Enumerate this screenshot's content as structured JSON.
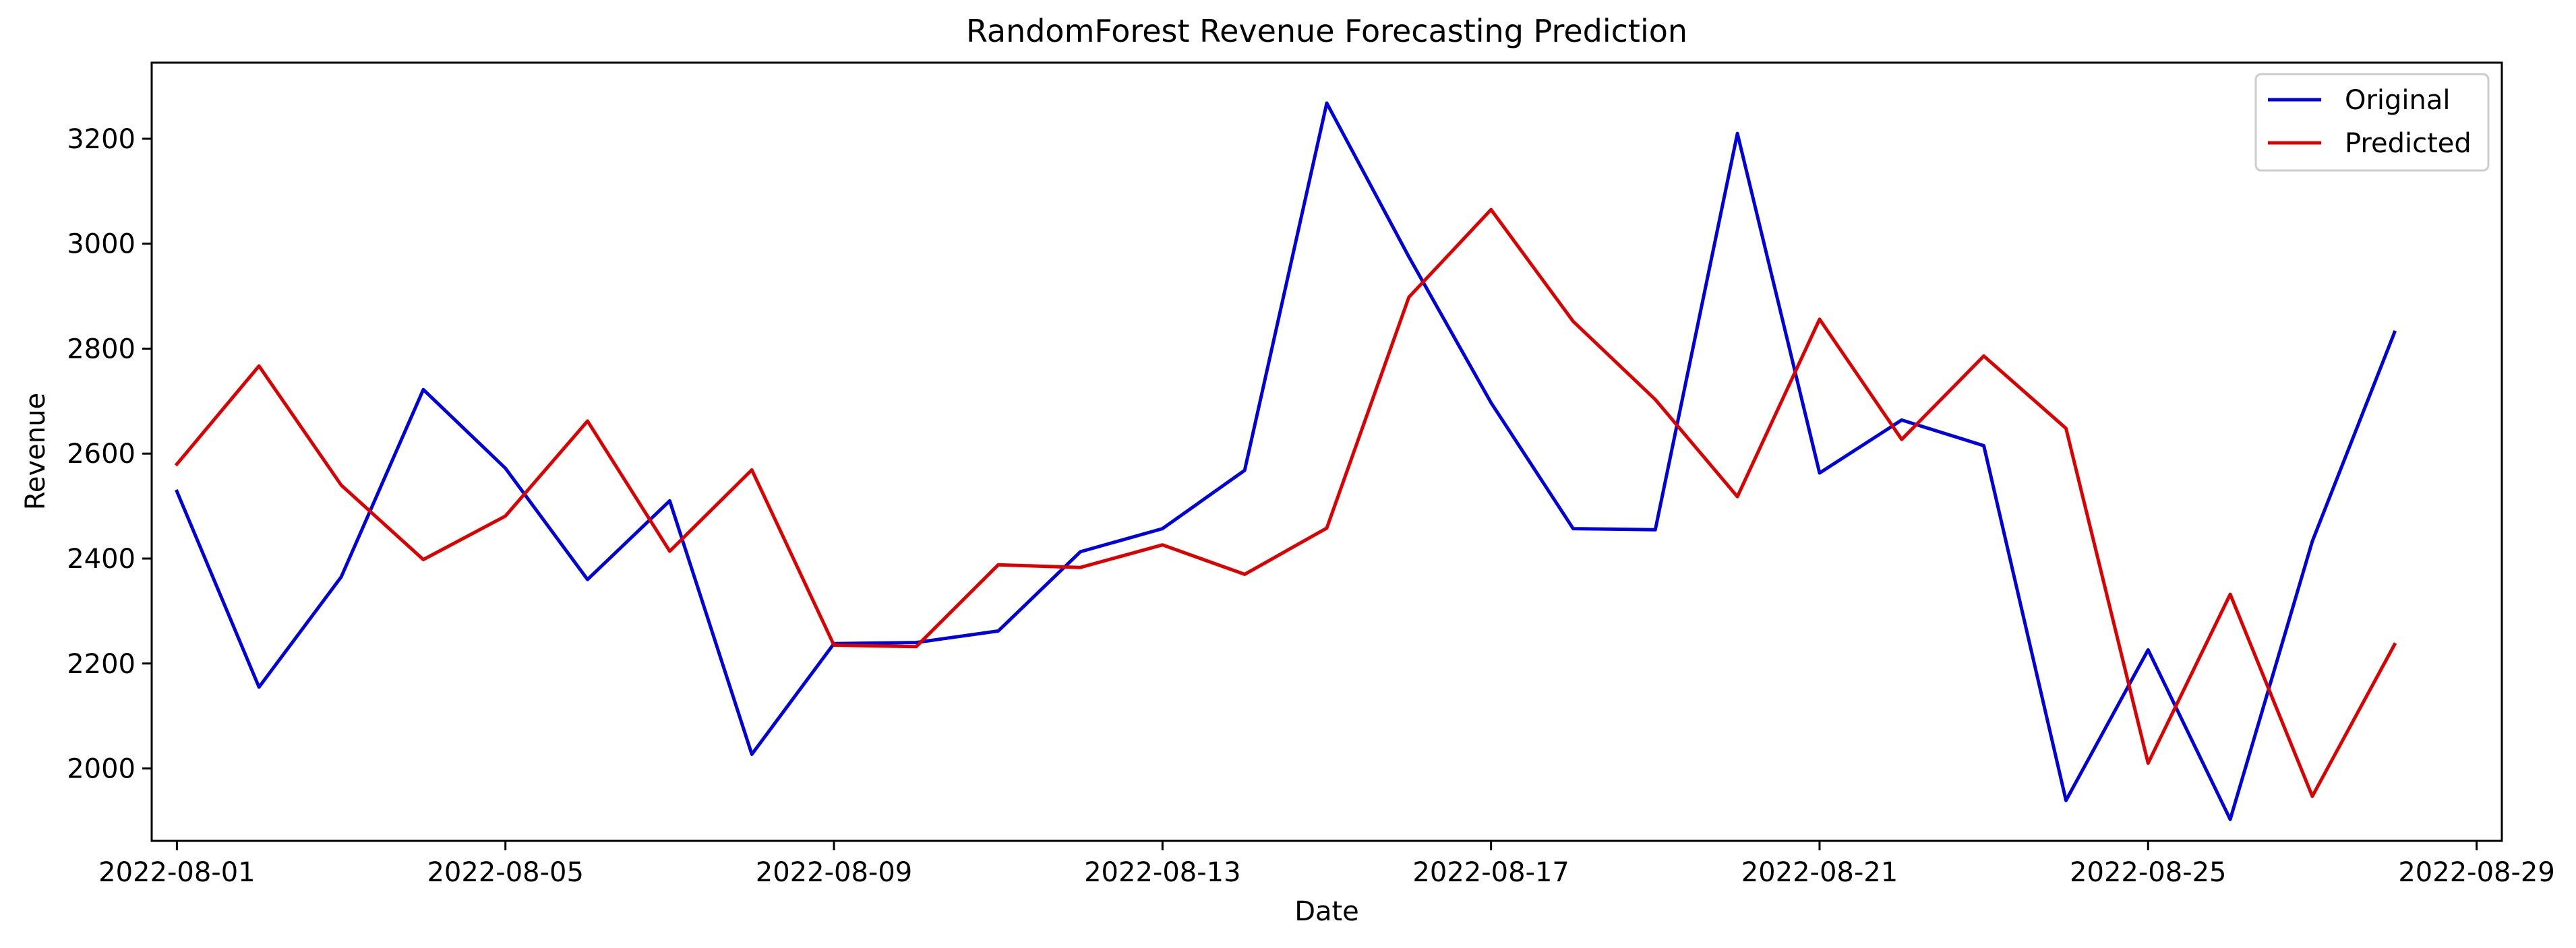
{
  "chart_data": {
    "type": "line",
    "title": "RandomForest Revenue Forecasting Prediction",
    "xlabel": "Date",
    "ylabel": "Revenue",
    "x": [
      "2022-08-01",
      "2022-08-02",
      "2022-08-03",
      "2022-08-04",
      "2022-08-05",
      "2022-08-06",
      "2022-08-07",
      "2022-08-08",
      "2022-08-09",
      "2022-08-10",
      "2022-08-11",
      "2022-08-12",
      "2022-08-13",
      "2022-08-14",
      "2022-08-15",
      "2022-08-16",
      "2022-08-17",
      "2022-08-18",
      "2022-08-19",
      "2022-08-20",
      "2022-08-21",
      "2022-08-22",
      "2022-08-23",
      "2022-08-24",
      "2022-08-25",
      "2022-08-26",
      "2022-08-27",
      "2022-08-28"
    ],
    "xlim": [
      "2022-07-31T16:38",
      "2022-08-29T07:22"
    ],
    "ylim": [
      1862,
      3345
    ],
    "x_ticks": [
      "2022-08-01",
      "2022-08-05",
      "2022-08-09",
      "2022-08-13",
      "2022-08-17",
      "2022-08-21",
      "2022-08-25",
      "2022-08-29"
    ],
    "y_ticks": [
      2000,
      2200,
      2400,
      2600,
      2800,
      3000,
      3200
    ],
    "grid": false,
    "legend_position": "top-right",
    "series": [
      {
        "name": "Original",
        "color": "#0000dd",
        "values": [
          2528,
          2155,
          2365,
          2722,
          2572,
          2360,
          2510,
          2027,
          2238,
          2240,
          2262,
          2413,
          2457,
          2568,
          3268,
          2975,
          2697,
          2457,
          2455,
          3210,
          2563,
          2664,
          2615,
          1939,
          2226,
          1903,
          2433,
          2831
        ]
      },
      {
        "name": "Predicted",
        "color": "#dd0000",
        "values": [
          2580,
          2767,
          2540,
          2398,
          2481,
          2662,
          2414,
          2569,
          2235,
          2232,
          2388,
          2383,
          2426,
          2370,
          2458,
          2898,
          3065,
          2852,
          2703,
          2518,
          2856,
          2627,
          2786,
          2648,
          2010,
          2332,
          1947,
          2236
        ]
      }
    ]
  }
}
